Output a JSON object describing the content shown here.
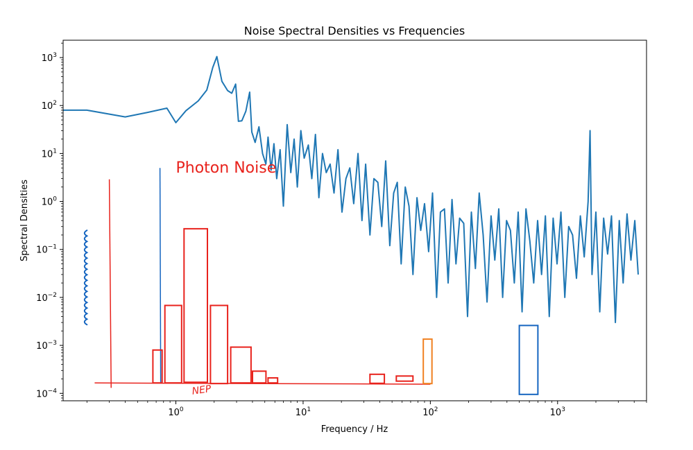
{
  "chart_data": {
    "type": "line",
    "title": "Noise Spectral Densities vs Frequencies",
    "xlabel": "Frequency / Hz",
    "ylabel": "Spectral Densities",
    "xscale": "log",
    "yscale": "log",
    "xlim": [
      0.13,
      5000
    ],
    "ylim": [
      7e-05,
      2300
    ],
    "x_ticks": [
      {
        "value": 1,
        "base": "10",
        "exp": "0"
      },
      {
        "value": 10,
        "base": "10",
        "exp": "1"
      },
      {
        "value": 100,
        "base": "10",
        "exp": "2"
      },
      {
        "value": 1000,
        "base": "10",
        "exp": "3"
      }
    ],
    "y_ticks": [
      {
        "value": 0.0001,
        "base": "10",
        "exp": "−4"
      },
      {
        "value": 0.001,
        "base": "10",
        "exp": "−3"
      },
      {
        "value": 0.01,
        "base": "10",
        "exp": "−2"
      },
      {
        "value": 0.1,
        "base": "10",
        "exp": "−1"
      },
      {
        "value": 1,
        "base": "10",
        "exp": "0"
      },
      {
        "value": 10,
        "base": "10",
        "exp": "1"
      },
      {
        "value": 100,
        "base": "10",
        "exp": "2"
      },
      {
        "value": 1000,
        "base": "10",
        "exp": "3"
      }
    ],
    "grid": false,
    "series": [
      {
        "color": "#1f77b4",
        "x": [
          0.13,
          0.2,
          0.4,
          0.6,
          0.85,
          1.0,
          1.2,
          1.5,
          1.75,
          1.95,
          2.1,
          2.3,
          2.55,
          2.75,
          2.95,
          3.1,
          3.3,
          3.55,
          3.8,
          3.95,
          4.2,
          4.5,
          4.8,
          5.1,
          5.3,
          5.6,
          5.9,
          6.2,
          6.6,
          7.0,
          7.5,
          8.0,
          8.5,
          9.0,
          9.6,
          10.2,
          11.0,
          11.7,
          12.5,
          13.3,
          14.2,
          15.2,
          16.3,
          17.5,
          18.8,
          20.2,
          21.7,
          23.3,
          25.0,
          27.0,
          29.0,
          31.0,
          33.5,
          36.0,
          38.7,
          41.5,
          44.6,
          48.0,
          51.5,
          55.0,
          59.0,
          63.5,
          68.0,
          73.0,
          78.5,
          84.0,
          90.0,
          97.0,
          104,
          112,
          120,
          129,
          138,
          148,
          159,
          170,
          183,
          196,
          210,
          226,
          242,
          260,
          279,
          300,
          321,
          345,
          370,
          397,
          426,
          457,
          490,
          526,
          564,
          605,
          649,
          697,
          748,
          802,
          860,
          923,
          990,
          1062,
          1140,
          1223,
          1312,
          1408,
          1510,
          1620,
          1738,
          1800,
          1865,
          2000,
          2146,
          2303,
          2471,
          2651,
          2845,
          3052,
          3275,
          3514,
          3770,
          4045,
          4300
        ],
        "y": [
          80,
          80,
          58,
          72,
          88,
          44,
          78,
          125,
          210,
          620,
          1050,
          320,
          205,
          180,
          280,
          47,
          48,
          76,
          190,
          28,
          17,
          36,
          10,
          6,
          22,
          4.5,
          16,
          3,
          12,
          0.8,
          40,
          4,
          20,
          2,
          30,
          8,
          15,
          3,
          25,
          1.2,
          10,
          4,
          6,
          1.5,
          12,
          0.6,
          3,
          5,
          0.9,
          10,
          0.4,
          6,
          0.2,
          3,
          2.5,
          0.3,
          7,
          0.12,
          1.5,
          2.5,
          0.05,
          2,
          0.8,
          0.03,
          1.2,
          0.25,
          0.9,
          0.09,
          1.5,
          0.01,
          0.6,
          0.7,
          0.02,
          1.1,
          0.05,
          0.45,
          0.35,
          0.004,
          0.6,
          0.04,
          1.5,
          0.2,
          0.008,
          0.5,
          0.06,
          0.7,
          0.01,
          0.4,
          0.25,
          0.02,
          0.6,
          0.005,
          0.7,
          0.15,
          0.02,
          0.4,
          0.03,
          0.5,
          0.004,
          0.45,
          0.05,
          0.6,
          0.01,
          0.3,
          0.2,
          0.025,
          0.5,
          0.07,
          1.0,
          30,
          0.03,
          0.6,
          0.005,
          0.45,
          0.08,
          0.5,
          0.003,
          0.4,
          0.02,
          0.55,
          0.06,
          0.4,
          0.03
        ]
      }
    ],
    "annotations": [
      {
        "text": "Photon Noise",
        "x": 1.0,
        "y": 4.0,
        "color": "#e8221c"
      },
      {
        "text": "NEP",
        "x": 1.35,
        "y": 9.5e-05,
        "color": "#e8221c",
        "hand": true
      }
    ],
    "hand_drawn": {
      "red": "#e8221c",
      "blue": "#1565c0",
      "orange": "#f08020",
      "nep_line": {
        "x": [
          0.23,
          100
        ],
        "y": [
          0.000165,
          0.000155
        ]
      },
      "red_vertical_line": {
        "x": [
          0.3,
          0.31
        ],
        "y": [
          2.9,
          0.00013
        ]
      },
      "blue_vertical_line": {
        "x": [
          0.75,
          0.76
        ],
        "y": [
          5.0,
          0.00016
        ]
      },
      "red_boxes": [
        {
          "x0": 0.66,
          "x1": 0.78,
          "y0": 0.000165,
          "y1": 0.0008
        },
        {
          "x0": 0.82,
          "x1": 1.11,
          "y0": 0.000165,
          "y1": 0.0068
        },
        {
          "x0": 1.16,
          "x1": 1.77,
          "y0": 0.00017,
          "y1": 0.27
        },
        {
          "x0": 1.87,
          "x1": 2.55,
          "y0": 0.00016,
          "y1": 0.0068
        },
        {
          "x0": 2.7,
          "x1": 3.9,
          "y0": 0.000165,
          "y1": 0.00092
        },
        {
          "x0": 4.0,
          "x1": 5.1,
          "y0": 0.000165,
          "y1": 0.00029
        },
        {
          "x0": 5.3,
          "x1": 6.3,
          "y0": 0.000165,
          "y1": 0.00021
        },
        {
          "x0": 33.5,
          "x1": 43.5,
          "y0": 0.000162,
          "y1": 0.00025
        },
        {
          "x0": 54,
          "x1": 73,
          "y0": 0.00018,
          "y1": 0.00023
        }
      ],
      "orange_boxes": [
        {
          "x0": 88,
          "x1": 103,
          "y0": 0.00016,
          "y1": 0.00135
        }
      ],
      "blue_boxes": [
        {
          "x0": 500,
          "x1": 700,
          "y0": 9.5e-05,
          "y1": 0.0026
        }
      ]
    },
    "detector_scribble": {
      "x": 0.2,
      "y_top": 0.25,
      "y_bottom": 0.0035,
      "color": "#1565c0"
    }
  }
}
